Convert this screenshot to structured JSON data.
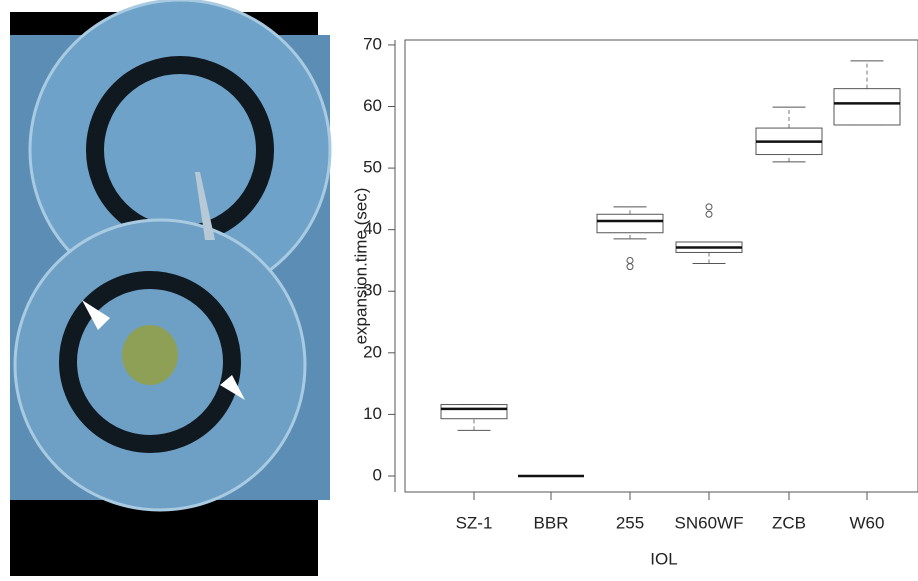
{
  "chart_data": {
    "type": "box",
    "xlabel": "IOL",
    "ylabel": "expansion.time (sec)",
    "categories": [
      "SZ-1",
      "BBR",
      "255",
      "SN60WF",
      "ZCB",
      "W60"
    ],
    "whislo": [
      7.4,
      0,
      38.5,
      34.5,
      51.0,
      57.0
    ],
    "q1": [
      9.3,
      0,
      39.5,
      36.3,
      52.2,
      57.0
    ],
    "median": [
      10.9,
      0,
      41.4,
      37.1,
      54.3,
      60.5
    ],
    "q3": [
      11.6,
      0,
      42.5,
      38.0,
      56.5,
      62.9
    ],
    "whishi": [
      11.6,
      0,
      43.7,
      38.0,
      59.9,
      67.4
    ],
    "outliers": [
      [],
      [],
      [
        34.0,
        35.0
      ],
      [
        42.5,
        43.7
      ],
      [],
      []
    ],
    "ylim": [
      -2.6,
      70.8
    ],
    "yticks": [
      0,
      10,
      20,
      30,
      40,
      50,
      60,
      70
    ],
    "color": "#ffffff"
  }
}
